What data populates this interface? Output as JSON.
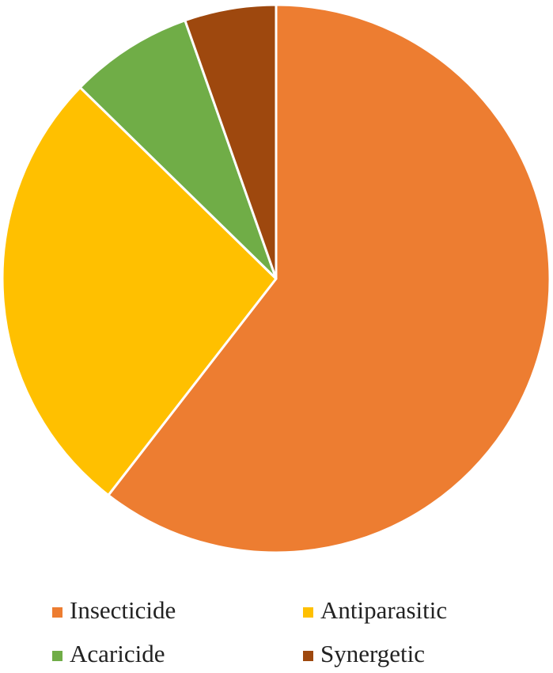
{
  "chart_data": {
    "type": "pie",
    "categories": [
      "Insecticide",
      "Antiparasitic",
      "Acaricide",
      "Synergetic"
    ],
    "values": [
      60.5,
      26.8,
      7.3,
      5.4
    ],
    "colors": [
      "#ed7d31",
      "#ffc000",
      "#70ad47",
      "#9e480e"
    ],
    "legend": "bottom"
  }
}
